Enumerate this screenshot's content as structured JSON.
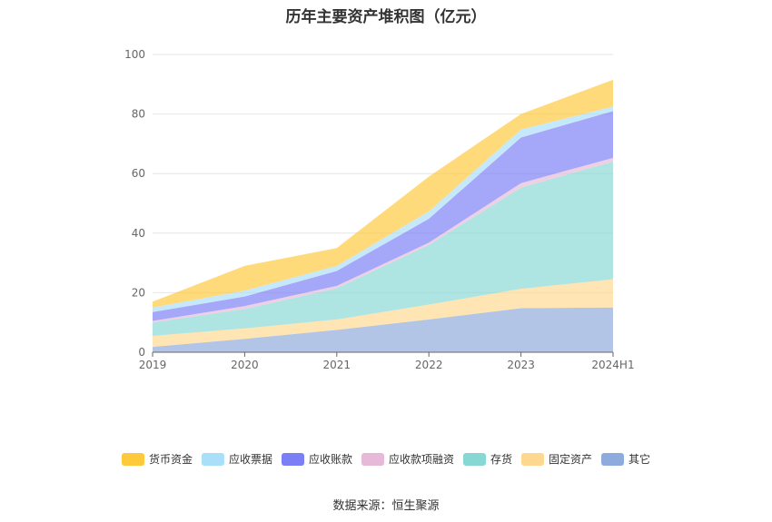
{
  "chart_data": {
    "type": "area",
    "stacked": true,
    "title": "历年主要资产堆积图（亿元）",
    "categories": [
      "2019",
      "2020",
      "2021",
      "2022",
      "2023",
      "2024H1"
    ],
    "ylim": [
      0,
      100
    ],
    "yticks": [
      "0",
      "20",
      "40",
      "60",
      "80",
      "100"
    ],
    "grid": true,
    "legend_position": "bottom",
    "series": [
      {
        "name": "其它",
        "color": "#8faadc",
        "values": [
          1.8,
          4.5,
          7.5,
          11.0,
          14.8,
          15.0
        ]
      },
      {
        "name": "固定资产",
        "color": "#ffd88f",
        "values": [
          3.7,
          3.5,
          3.5,
          5.0,
          6.5,
          9.5
        ]
      },
      {
        "name": "存货",
        "color": "#87d8d4",
        "values": [
          4.5,
          6.5,
          10.5,
          20.0,
          34.0,
          39.5
        ]
      },
      {
        "name": "应收款项融资",
        "color": "#e6b9d8",
        "values": [
          0.5,
          1.0,
          0.8,
          0.8,
          1.5,
          1.3
        ]
      },
      {
        "name": "应收账款",
        "color": "#7b7ef5",
        "values": [
          3.0,
          3.2,
          5.0,
          8.0,
          15.3,
          15.7
        ]
      },
      {
        "name": "应收票据",
        "color": "#a9dff8",
        "values": [
          1.5,
          2.0,
          1.7,
          2.5,
          2.7,
          1.5
        ]
      },
      {
        "name": "货币资金",
        "color": "#ffc93c",
        "values": [
          2.0,
          8.3,
          6.0,
          11.7,
          5.2,
          9.0
        ]
      }
    ],
    "legend_order": [
      "货币资金",
      "应收票据",
      "应收账款",
      "应收款项融资",
      "存货",
      "固定资产",
      "其它"
    ]
  },
  "footer": {
    "source": "数据来源：恒生聚源"
  }
}
